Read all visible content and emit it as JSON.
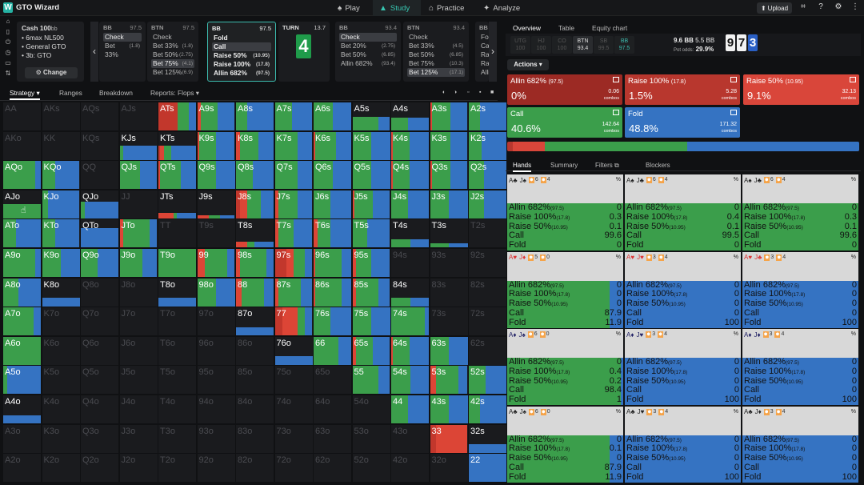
{
  "app": {
    "name": "GTO Wizard"
  },
  "nav": [
    {
      "label": "Play",
      "icon": "spade-icon"
    },
    {
      "label": "Study",
      "icon": "mortarboard-icon",
      "active": true
    },
    {
      "label": "Practice",
      "icon": "controller-icon"
    },
    {
      "label": "Analyze",
      "icon": "analyze-icon"
    }
  ],
  "topright": {
    "upload": "Upload"
  },
  "cash": {
    "title": "Cash",
    "stake": "100",
    "stake_unit": "bb",
    "items": [
      "6max NL500",
      "General GTO",
      "3b: GTO"
    ],
    "change": "Change"
  },
  "seats": [
    {
      "pos": "BB",
      "stack": "97.5",
      "opts": [
        {
          "l": "Check",
          "sel": true
        },
        {
          "l": "Bet 33%",
          "v": "(1.8)"
        }
      ]
    },
    {
      "pos": "BTN",
      "stack": "97.5",
      "opts": [
        {
          "l": "Check"
        },
        {
          "l": "Bet 33%",
          "v": "(1.8)"
        },
        {
          "l": "Bet 50%",
          "v": "(2.75)"
        },
        {
          "l": "Bet 75%",
          "v": "(4.1)",
          "sel": true
        },
        {
          "l": "Bet 125%",
          "v": "(6.9)"
        }
      ]
    },
    {
      "pos": "BB",
      "stack": "97.5",
      "current": true,
      "opts": [
        {
          "l": "Fold"
        },
        {
          "l": "Call",
          "sel": true
        },
        {
          "l": "Raise 50%",
          "v": "(10.95)"
        },
        {
          "l": "Raise 100%",
          "v": "(17.8)"
        },
        {
          "l": "Allin 682%",
          "v": "(97.5)"
        }
      ]
    },
    {
      "pos": "BB",
      "stack": "93.4",
      "opts": [
        {
          "l": "Check",
          "sel": true
        },
        {
          "l": "Bet 20%",
          "v": "(2.75)"
        },
        {
          "l": "Bet 50%",
          "v": "(6.85)"
        },
        {
          "l": "Allin 682%",
          "v": "(93.4)"
        }
      ]
    },
    {
      "pos": "BTN",
      "stack": "93.4",
      "opts": [
        {
          "l": "Check"
        },
        {
          "l": "Bet 33%",
          "v": "(4.5)"
        },
        {
          "l": "Bet 50%",
          "v": "(6.85)"
        },
        {
          "l": "Bet 75%",
          "v": "(10.3)"
        },
        {
          "l": "Bet 125%",
          "v": "(17.1)",
          "sel": true
        }
      ]
    },
    {
      "pos": "BB",
      "stack": "",
      "opts": [
        {
          "l": "Fold"
        },
        {
          "l": "Call"
        },
        {
          "l": "Raise"
        },
        {
          "l": "Raise"
        },
        {
          "l": "Allin"
        }
      ]
    }
  ],
  "turn": {
    "label": "TURN",
    "pot": "13.7",
    "card": "4",
    "card_color": "#1f9b4a"
  },
  "left_tabs": [
    "Strategy",
    "Ranges",
    "Breakdown",
    "Reports: Flops"
  ],
  "right_tabs": [
    "Overview",
    "Table",
    "Equity chart"
  ],
  "positions": [
    {
      "p": "UTG",
      "s": "100"
    },
    {
      "p": "HJ",
      "s": "100"
    },
    {
      "p": "CO",
      "s": "100"
    },
    {
      "p": "BTN",
      "s": "93.4",
      "active": true
    },
    {
      "p": "SB",
      "s": "99.5"
    },
    {
      "p": "BB",
      "s": "97.5",
      "bb": true
    }
  ],
  "pot": {
    "main": "9.6 BB",
    "side": "5.5 BB",
    "pot_odds_label": "Pot odds:",
    "pot_odds": "29.9%"
  },
  "board": [
    "9",
    "7",
    "3"
  ],
  "actions_label": "Actions",
  "actions": [
    {
      "name": "Allin 682%",
      "size": "(97.5)",
      "pct": "0%",
      "combos": "0.06",
      "color": "#9c2a24"
    },
    {
      "name": "Raise 100%",
      "size": "(17.8)",
      "pct": "1.5%",
      "combos": "5.28",
      "color": "#b8372e"
    },
    {
      "name": "Raise 50%",
      "size": "(10.95)",
      "pct": "9.1%",
      "combos": "32.13",
      "color": "#d9463a"
    },
    {
      "name": "Call",
      "size": "",
      "pct": "40.6%",
      "combos": "142.64",
      "color": "#3b9e4b"
    },
    {
      "name": "Fold",
      "size": "",
      "pct": "48.8%",
      "combos": "171.32",
      "color": "#3573c2"
    }
  ],
  "combos_word": "combos",
  "sub_tabs": [
    "Hands",
    "Summary",
    "Filters",
    "Blockers"
  ],
  "grid": {
    "labels": [
      [
        "AA",
        "AKs",
        "AQs",
        "AJs",
        "ATs",
        "A9s",
        "A8s",
        "A7s",
        "A6s",
        "A5s",
        "A4s",
        "A3s",
        "A2s"
      ],
      [
        "AKo",
        "KK",
        "KQs",
        "KJs",
        "KTs",
        "K9s",
        "K8s",
        "K7s",
        "K6s",
        "K5s",
        "K4s",
        "K3s",
        "K2s"
      ],
      [
        "AQo",
        "KQo",
        "QQ",
        "QJs",
        "QTs",
        "Q9s",
        "Q8s",
        "Q7s",
        "Q6s",
        "Q5s",
        "Q4s",
        "Q3s",
        "Q2s"
      ],
      [
        "AJo",
        "KJo",
        "QJo",
        "JJ",
        "JTs",
        "J9s",
        "J8s",
        "J7s",
        "J6s",
        "J5s",
        "J4s",
        "J3s",
        "J2s"
      ],
      [
        "ATo",
        "KTo",
        "QTo",
        "JTo",
        "TT",
        "T9s",
        "T8s",
        "T7s",
        "T6s",
        "T5s",
        "T4s",
        "T3s",
        "T2s"
      ],
      [
        "A9o",
        "K9o",
        "Q9o",
        "J9o",
        "T9o",
        "99",
        "98s",
        "97s",
        "96s",
        "95s",
        "94s",
        "93s",
        "92s"
      ],
      [
        "A8o",
        "K8o",
        "Q8o",
        "J8o",
        "T8o",
        "98o",
        "88",
        "87s",
        "86s",
        "85s",
        "84s",
        "83s",
        "82s"
      ],
      [
        "A7o",
        "K7o",
        "Q7o",
        "J7o",
        "T7o",
        "97o",
        "87o",
        "77",
        "76s",
        "75s",
        "74s",
        "73s",
        "72s"
      ],
      [
        "A6o",
        "K6o",
        "Q6o",
        "J6o",
        "T6o",
        "96o",
        "86o",
        "76o",
        "66",
        "65s",
        "64s",
        "63s",
        "62s"
      ],
      [
        "A5o",
        "K5o",
        "Q5o",
        "J5o",
        "T5o",
        "95o",
        "85o",
        "75o",
        "65o",
        "55",
        "54s",
        "53s",
        "52s"
      ],
      [
        "A4o",
        "K4o",
        "Q4o",
        "J4o",
        "T4o",
        "94o",
        "84o",
        "74o",
        "64o",
        "54o",
        "44",
        "43s",
        "42s"
      ],
      [
        "A3o",
        "K3o",
        "Q3o",
        "J3o",
        "T3o",
        "93o",
        "83o",
        "73o",
        "63o",
        "53o",
        "43o",
        "33",
        "32s"
      ],
      [
        "A2o",
        "K2o",
        "Q2o",
        "J2o",
        "T2o",
        "92o",
        "82o",
        "72o",
        "62o",
        "52o",
        "42o",
        "32o",
        "22"
      ]
    ],
    "cells": {
      "ATs": [
        1,
        0.5,
        0,
        0.3,
        0.2
      ],
      "A9s": [
        1,
        0,
        0.1,
        0.45,
        0.45
      ],
      "A8s": [
        1,
        0,
        0,
        0.3,
        0.7
      ],
      "A7s": [
        1,
        0,
        0,
        0.45,
        0.55
      ],
      "A6s": [
        1,
        0,
        0,
        0.5,
        0.5
      ],
      "A5s": [
        0.5,
        0,
        0,
        0.7,
        0.3
      ],
      "A4s": [
        0.45,
        0,
        0,
        0.45,
        0.55
      ],
      "A3s": [
        1,
        0,
        0.05,
        0.5,
        0.45
      ],
      "A2s": [
        1,
        0,
        0,
        0.3,
        0.7
      ],
      "KJs": [
        0.5,
        0,
        0,
        0.1,
        0.9
      ],
      "KTs": [
        0.5,
        0.05,
        0.1,
        0.2,
        0.65
      ],
      "K9s": [
        1,
        0,
        0.05,
        0.45,
        0.5
      ],
      "K8s": [
        1,
        0,
        0.1,
        0.5,
        0.4
      ],
      "K7s": [
        1,
        0,
        0,
        0.6,
        0.4
      ],
      "K6s": [
        1,
        0,
        0.05,
        0.55,
        0.4
      ],
      "K5s": [
        1,
        0,
        0,
        0.5,
        0.5
      ],
      "K4s": [
        1,
        0,
        0.05,
        0.45,
        0.5
      ],
      "K3s": [
        1,
        0,
        0,
        0.55,
        0.45
      ],
      "K2s": [
        1,
        0,
        0,
        0.35,
        0.65
      ],
      "AQo": [
        1,
        0,
        0,
        0.85,
        0.15
      ],
      "KQo": [
        1,
        0,
        0,
        0.35,
        0.65
      ],
      "QJs": [
        1,
        0,
        0,
        0.55,
        0.45
      ],
      "QTs": [
        1,
        0,
        0.05,
        0.55,
        0.4
      ],
      "Q9s": [
        1,
        0,
        0,
        0.5,
        0.5
      ],
      "Q8s": [
        1,
        0,
        0,
        0.45,
        0.55
      ],
      "Q7s": [
        1,
        0,
        0,
        0.6,
        0.4
      ],
      "Q6s": [
        1,
        0,
        0,
        0.5,
        0.5
      ],
      "Q5s": [
        1,
        0,
        0,
        0.5,
        0.5
      ],
      "Q4s": [
        1,
        0,
        0.05,
        0.45,
        0.5
      ],
      "Q3s": [
        1,
        0,
        0.05,
        0.5,
        0.45
      ],
      "Q2s": [
        1,
        0,
        0,
        0.4,
        0.6
      ],
      "AJo": [
        0.5,
        0,
        0,
        1,
        0
      ],
      "KJo": [
        1,
        0,
        0,
        0.15,
        0.85
      ],
      "QJo": [
        0.6,
        0,
        0,
        0.1,
        0.9
      ],
      "JTs": [
        0.2,
        0,
        0.4,
        0.1,
        0.5
      ],
      "J9s": [
        0.1,
        0,
        0.3,
        0.3,
        0.4
      ],
      "J8s": [
        1,
        0.1,
        0.2,
        0.35,
        0.35
      ],
      "J7s": [
        1,
        0,
        0.1,
        0.5,
        0.4
      ],
      "J6s": [
        1,
        0,
        0,
        0.45,
        0.55
      ],
      "J5s": [
        1,
        0,
        0.05,
        0.5,
        0.45
      ],
      "J4s": [
        1,
        0,
        0,
        0.45,
        0.55
      ],
      "J3s": [
        1,
        0,
        0,
        0.5,
        0.5
      ],
      "J2s": [
        1,
        0,
        0,
        0.4,
        0.6
      ],
      "ATo": [
        1,
        0,
        0,
        0.35,
        0.65
      ],
      "KTo": [
        1,
        0,
        0,
        0.35,
        0.65
      ],
      "QTo": [
        0.7,
        0,
        0,
        0,
        1
      ],
      "JTo": [
        1,
        0,
        0.1,
        0.7,
        0.2
      ],
      "T8s": [
        0.2,
        0,
        0.3,
        0.2,
        0.5
      ],
      "T7s": [
        1,
        0,
        0.1,
        0.4,
        0.5
      ],
      "T6s": [
        1,
        0,
        0.1,
        0.35,
        0.55
      ],
      "T5s": [
        1,
        0,
        0,
        0.4,
        0.6
      ],
      "T4s": [
        0.3,
        0,
        0,
        0.5,
        0.5
      ],
      "T3s": [
        0.15,
        0,
        0,
        0.5,
        0.5
      ],
      "A9o": [
        1,
        0,
        0,
        0.85,
        0.15
      ],
      "K9o": [
        1,
        0,
        0,
        0.5,
        0.5
      ],
      "Q9o": [
        1,
        0,
        0,
        0.45,
        0.55
      ],
      "J9o": [
        1,
        0,
        0,
        0.6,
        0.4
      ],
      "T9o": [
        1,
        0,
        0,
        1,
        0
      ],
      "99": [
        1,
        0,
        0.2,
        0.6,
        0.2
      ],
      "98s": [
        1,
        0,
        0.1,
        0.7,
        0.2
      ],
      "97s": [
        1,
        0.3,
        0.2,
        0.3,
        0.2
      ],
      "96s": [
        1,
        0,
        0.05,
        0.7,
        0.25
      ],
      "95s": [
        1,
        0,
        0.1,
        0.4,
        0.5
      ],
      "A8o": [
        1,
        0,
        0,
        0.4,
        0.6
      ],
      "K8o": [
        0.3,
        0,
        0,
        0,
        1
      ],
      "T8o": [
        0.3,
        0,
        0,
        0,
        1
      ],
      "98o": [
        1,
        0,
        0,
        0.5,
        0.5
      ],
      "88": [
        1,
        0,
        0.15,
        0.6,
        0.25
      ],
      "87s": [
        1,
        0,
        0.1,
        0.6,
        0.3
      ],
      "86s": [
        1,
        0,
        0.05,
        0.7,
        0.25
      ],
      "85s": [
        1,
        0,
        0.1,
        0.6,
        0.3
      ],
      "84s": [
        0.3,
        0,
        0,
        0.5,
        0.5
      ],
      "A7o": [
        1,
        0,
        0,
        0.8,
        0.2
      ],
      "87o": [
        0.3,
        0,
        0,
        0,
        1
      ],
      "77": [
        1,
        0.2,
        0.4,
        0.2,
        0.2
      ],
      "76s": [
        1,
        0,
        0,
        0.45,
        0.55
      ],
      "75s": [
        1,
        0,
        0,
        0.5,
        0.5
      ],
      "74s": [
        1,
        0,
        0,
        0.9,
        0.1
      ],
      "A6o": [
        1,
        0,
        0,
        1,
        0
      ],
      "76o": [
        0.3,
        0,
        0,
        0,
        1
      ],
      "66": [
        1,
        0,
        0,
        0.65,
        0.35
      ],
      "65s": [
        1,
        0,
        0.1,
        0.45,
        0.45
      ],
      "64s": [
        1,
        0,
        0.05,
        0.45,
        0.5
      ],
      "63s": [
        1,
        0,
        0,
        0.5,
        0.5
      ],
      "A5o": [
        1,
        0,
        0,
        0.1,
        0.9
      ],
      "55": [
        1,
        0,
        0,
        0.7,
        0.3
      ],
      "54s": [
        1,
        0,
        0,
        0.5,
        0.5
      ],
      "53s": [
        1,
        0,
        0.15,
        0.6,
        0.25
      ],
      "52s": [
        1,
        0,
        0,
        0.45,
        0.55
      ],
      "A4o": [
        0.3,
        0,
        0,
        0,
        1
      ],
      "44": [
        1,
        0,
        0,
        0.45,
        0.55
      ],
      "43s": [
        1,
        0,
        0,
        0.5,
        0.5
      ],
      "42s": [
        1,
        0,
        0,
        0.3,
        0.7
      ],
      "33": [
        1,
        0.15,
        0.85,
        0,
        0
      ],
      "32s": [
        0.3,
        0,
        0,
        0,
        1
      ],
      "22": [
        1,
        0,
        0,
        0,
        1
      ]
    }
  },
  "hands": [
    {
      "c1": "A",
      "s1": "♣",
      "c1c": "",
      "c2": "J",
      "s2": "♠",
      "c2c": "",
      "b": [
        "6",
        "4"
      ],
      "rows": [
        "0",
        "0.3",
        "0.1",
        "99.6",
        "0"
      ],
      "mix": [
        0,
        0,
        0,
        1,
        0
      ]
    },
    {
      "c1": "A",
      "s1": "♠",
      "c2": "J",
      "s2": "♣",
      "b": [
        "6",
        "4"
      ],
      "rows": [
        "0",
        "0.4",
        "0.1",
        "99.5",
        "0"
      ],
      "mix": [
        0,
        0,
        0,
        1,
        0
      ]
    },
    {
      "c1": "A",
      "s1": "♠",
      "c2": "J",
      "s2": "♣",
      "b": [
        "6",
        "4"
      ],
      "rows": [
        "0",
        "0.3",
        "0.1",
        "99.6",
        "0"
      ],
      "mix": [
        0,
        0,
        0,
        1,
        0
      ],
      "c2green": true
    },
    {
      "c1": "A",
      "s1": "♥",
      "c2": "J",
      "s2": "♦",
      "red": true,
      "b": [
        "5",
        "0"
      ],
      "rows": [
        "0",
        "0",
        "0",
        "87.9",
        "11.9"
      ],
      "mix": [
        0,
        0,
        0,
        0.88,
        0.12
      ]
    },
    {
      "c1": "A",
      "s1": "♥",
      "c2": "J",
      "s2": "♥",
      "red": true,
      "b": [
        "3",
        "4"
      ],
      "rows": [
        "0",
        "0",
        "0",
        "0",
        "100"
      ],
      "mix": [
        0,
        0,
        0,
        0,
        1
      ]
    },
    {
      "c1": "A",
      "s1": "♥",
      "c2": "J",
      "s2": "♣",
      "red": true,
      "b": [
        "3",
        "4"
      ],
      "rows": [
        "0",
        "0",
        "0",
        "0",
        "100"
      ],
      "mix": [
        0,
        0,
        0,
        0,
        1
      ]
    },
    {
      "c1": "A",
      "s1": "♦",
      "c2": "J",
      "s2": "♠",
      "blue": true,
      "b": [
        "6",
        "0"
      ],
      "rows": [
        "0",
        "0.4",
        "0.2",
        "98.4",
        "1"
      ],
      "mix": [
        0,
        0,
        0,
        0.98,
        0.02
      ]
    },
    {
      "c1": "A",
      "s1": "♦",
      "c2": "J",
      "s2": "♥",
      "blue": true,
      "b": [
        "3",
        "4"
      ],
      "rows": [
        "0",
        "0",
        "0",
        "0",
        "100"
      ],
      "mix": [
        0,
        0,
        0,
        0,
        1
      ]
    },
    {
      "c1": "A",
      "s1": "♦",
      "c2": "J",
      "s2": "♦",
      "blue": true,
      "b": [
        "3",
        "4"
      ],
      "rows": [
        "0",
        "0",
        "0",
        "0",
        "100"
      ],
      "mix": [
        0,
        0,
        0,
        0,
        1
      ]
    },
    {
      "c1": "A",
      "s1": "♣",
      "c2": "J",
      "s2": "♠",
      "b": [
        "6",
        "0"
      ],
      "rows": [
        "0",
        "0.1",
        "0",
        "87.9",
        "11.9"
      ],
      "mix": [
        0,
        0,
        0,
        0.88,
        0.12
      ]
    },
    {
      "c1": "A",
      "s1": "♣",
      "c2": "J",
      "s2": "♥",
      "b": [
        "3",
        "4"
      ],
      "rows": [
        "0",
        "0",
        "0",
        "0",
        "100"
      ],
      "mix": [
        0,
        0,
        0,
        0,
        1
      ]
    },
    {
      "c1": "A",
      "s1": "♣",
      "c2": "J",
      "s2": "♦",
      "b": [
        "3",
        "4"
      ],
      "rows": [
        "0",
        "0",
        "0",
        "0",
        "100"
      ],
      "mix": [
        0,
        0,
        0,
        0,
        1
      ]
    }
  ],
  "hand_row_labels": [
    {
      "n": "Allin 682%",
      "s": "(97.5)"
    },
    {
      "n": "Raise 100%",
      "s": "(17.8)"
    },
    {
      "n": "Raise 50%",
      "s": "(10.95)"
    },
    {
      "n": "Call",
      "s": ""
    },
    {
      "n": "Fold",
      "s": ""
    }
  ],
  "colors": {
    "allin": "#9c2a24",
    "raise100": "#c2372c",
    "raise50": "#dc4536",
    "call": "#3b9e4b",
    "fold": "#3573c2",
    "accent": "#37c7b2"
  }
}
